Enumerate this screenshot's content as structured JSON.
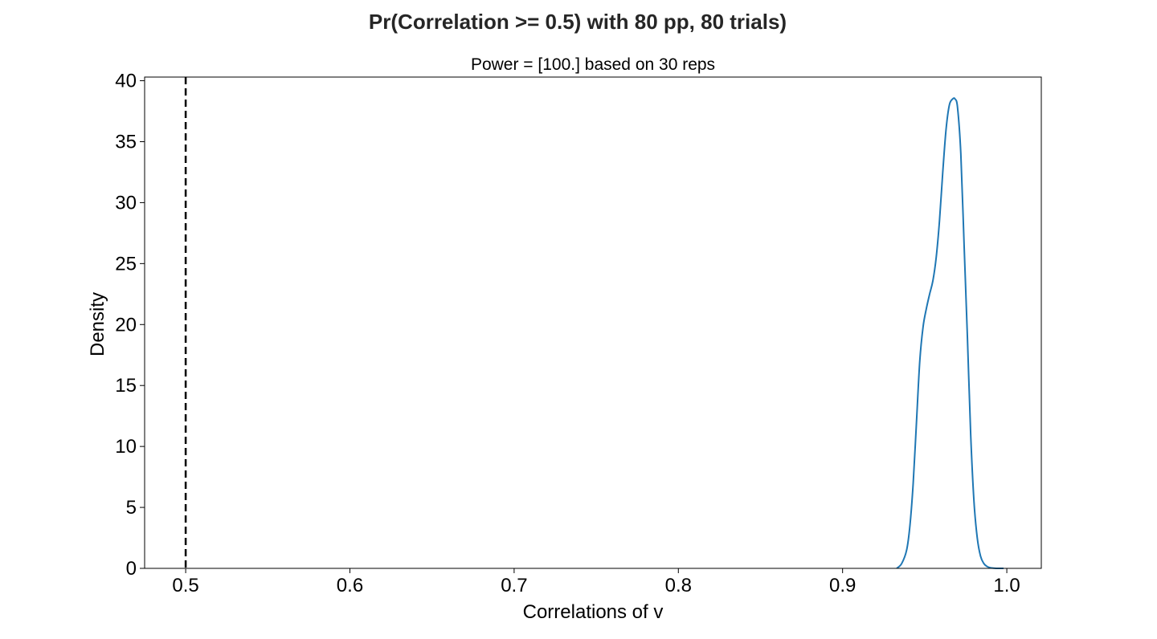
{
  "chart_data": {
    "type": "line",
    "suptitle": "Pr(Correlation >= 0.5) with 80 pp, 80 trials)",
    "title": "Power = [100.] based on 30 reps",
    "xlabel": "Correlations of v",
    "ylabel": "Density",
    "xlim": [
      0.475,
      1.021
    ],
    "ylim": [
      0,
      40.3
    ],
    "xticks": [
      0.5,
      0.6,
      0.7,
      0.8,
      0.9,
      1.0
    ],
    "xtick_labels": [
      "0.5",
      "0.6",
      "0.7",
      "0.8",
      "0.9",
      "1.0"
    ],
    "yticks": [
      0,
      5,
      10,
      15,
      20,
      25,
      30,
      35,
      40
    ],
    "ytick_labels": [
      "0",
      "5",
      "10",
      "15",
      "20",
      "25",
      "30",
      "35",
      "40"
    ],
    "grid": false,
    "threshold_line": {
      "x": 0.5,
      "style": "dashed",
      "color": "#000000"
    },
    "series": [
      {
        "color": "#1f77b4",
        "x": [
          0.933,
          0.936,
          0.939,
          0.941,
          0.943,
          0.945,
          0.947,
          0.949,
          0.951,
          0.953,
          0.955,
          0.957,
          0.959,
          0.961,
          0.963,
          0.965,
          0.967,
          0.9685,
          0.97,
          0.972,
          0.974,
          0.976,
          0.978,
          0.98,
          0.982,
          0.984,
          0.986,
          0.988,
          0.99,
          0.992,
          0.995,
          0.998
        ],
        "y": [
          0,
          0.4,
          1.5,
          3.5,
          7,
          12,
          17,
          19.8,
          21.3,
          22.5,
          23.6,
          25.5,
          28.5,
          32.5,
          36,
          38,
          38.5,
          38.5,
          37.8,
          34,
          26.5,
          19,
          11,
          5.5,
          2.5,
          1.0,
          0.4,
          0.15,
          0.05,
          0.02,
          0.0,
          0.0
        ]
      }
    ]
  }
}
